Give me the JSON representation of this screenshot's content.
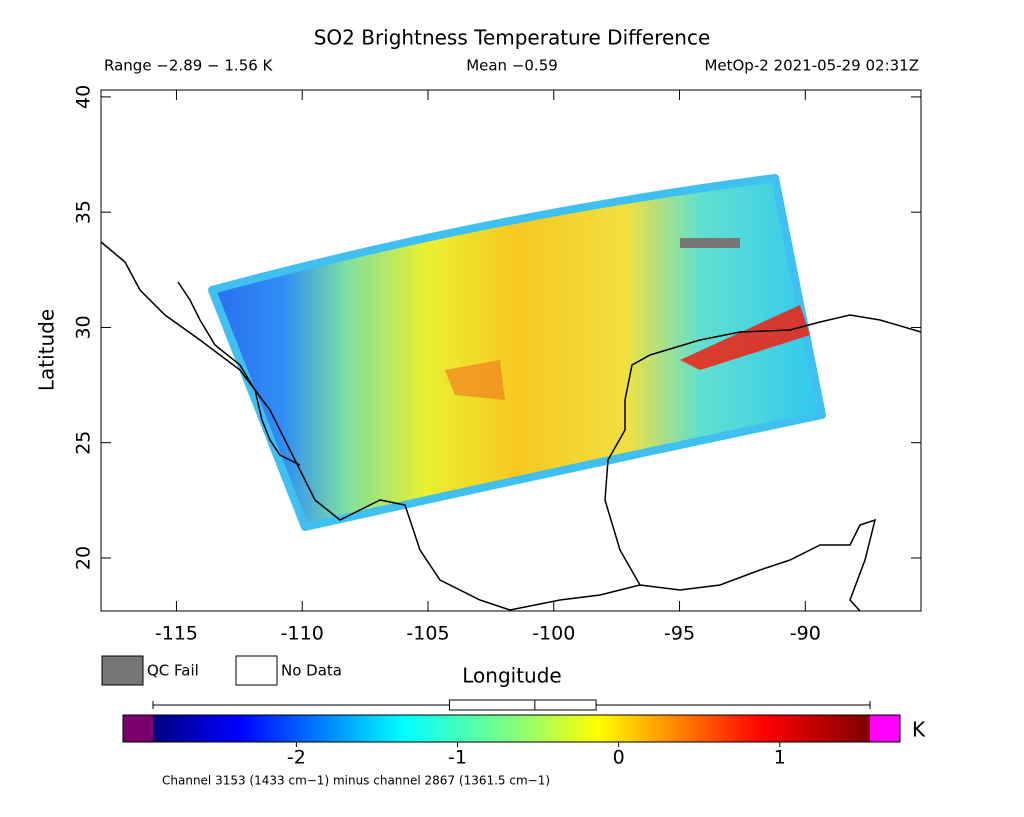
{
  "chart_data": {
    "type": "map",
    "title": "SO2 Brightness Temperature Difference",
    "subtitle_left": "Range −2.89 − 1.56 K",
    "subtitle_center": "Mean −0.59",
    "subtitle_right": "MetOp-2 2021-05-29 02:31Z",
    "x_label": "Longitude",
    "y_label": "Latitude",
    "xlim": [
      -118,
      -85.4
    ],
    "ylim": [
      17.7,
      40.3
    ],
    "xticks": [
      -115,
      -110,
      -105,
      -100,
      -95,
      -90
    ],
    "yticks": [
      20,
      25,
      30,
      35,
      40
    ],
    "legend": [
      {
        "name": "QC Fail",
        "color": "#777777"
      },
      {
        "name": "No Data",
        "color": "#ffffff"
      }
    ],
    "colorbar": {
      "lim": [
        -2.89,
        1.56
      ],
      "ticks": [
        -2,
        -1,
        0,
        1
      ],
      "unit": "K",
      "box": [
        -1.05,
        -0.52,
        -0.14
      ],
      "under_color": "#7a0070",
      "over_color": "#ff00ff"
    },
    "footnote": "Channel 3153 (1433 cm−1) minus channel 2867 (1361.5 cm−1)"
  }
}
